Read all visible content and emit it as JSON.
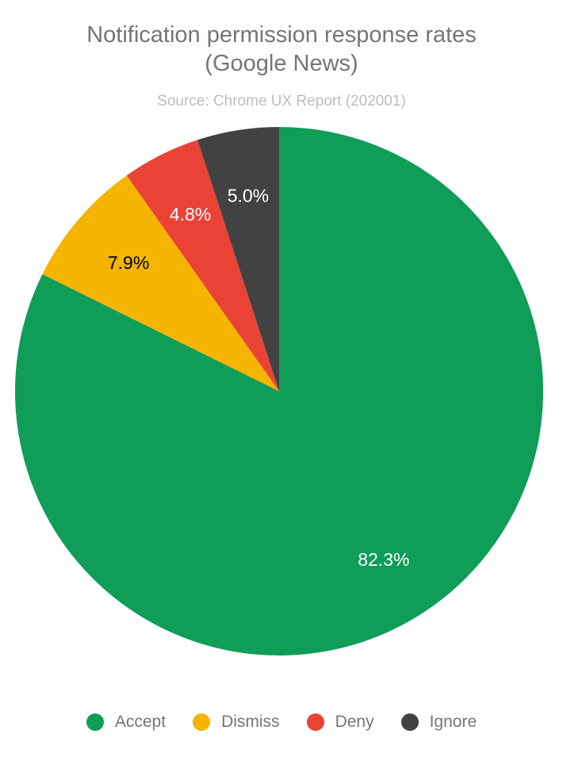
{
  "chart_data": {
    "type": "pie",
    "title": "Notification permission response rates (Google News)",
    "title_lines": [
      "Notification permission response rates",
      "(Google News)"
    ],
    "subtitle": "Source: Chrome UX Report (202001)",
    "categories": [
      "Accept",
      "Dismiss",
      "Deny",
      "Ignore"
    ],
    "values": [
      82.3,
      7.9,
      4.8,
      5.0
    ],
    "labels": [
      "82.3%",
      "7.9%",
      "4.8%",
      "5.0%"
    ],
    "colors": [
      "#0f9d58",
      "#f4b400",
      "#ea4335",
      "#424242"
    ],
    "label_colors": [
      "#ffffff",
      "#000000",
      "#ffffff",
      "#ffffff"
    ],
    "start": "top",
    "direction": "clockwise",
    "legend_position": "bottom"
  }
}
